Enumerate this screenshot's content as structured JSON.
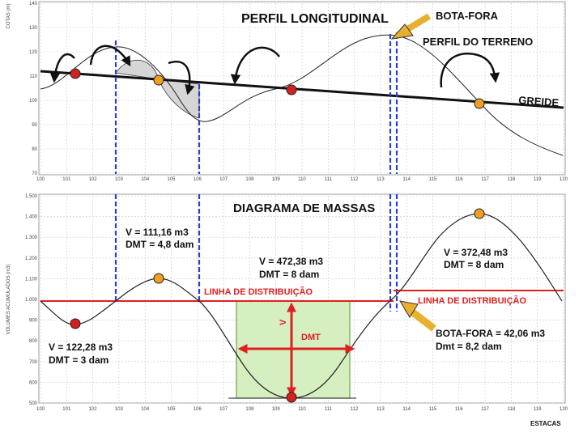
{
  "top_chart": {
    "title": "PERFIL LONGITUDINAL",
    "y_axis_label": "COTAS (m)",
    "y_ticks": [
      "140",
      "130",
      "120",
      "110",
      "100",
      "90",
      "80",
      "70"
    ],
    "x_ticks": [
      "100",
      "101",
      "102",
      "103",
      "104",
      "105",
      "106",
      "107",
      "108",
      "109",
      "110",
      "111",
      "112",
      "113",
      "114",
      "115",
      "116",
      "117",
      "118",
      "119",
      "120"
    ],
    "labels": {
      "bota_fora": "BOTA-FORA",
      "perfil_terreno": "PERFIL DO TERRENO",
      "greide": "GREIDE"
    },
    "colors": {
      "accent_line": "#2b3fcf",
      "fill": "#d9d9d9",
      "red_dot": "#d42020",
      "orange_dot": "#f0a020"
    }
  },
  "bottom_chart": {
    "title": "DIAGRAMA DE MASSAS",
    "y_axis_label": "VOLUMES ACUMULADOS (m3)",
    "x_axis_label": "ESTACAS",
    "y_ticks": [
      "1.500",
      "1.400",
      "1.300",
      "1.200",
      "1.100",
      "1.000",
      "900",
      "800",
      "700",
      "600",
      "500"
    ],
    "x_ticks": [
      "100",
      "101",
      "102",
      "103",
      "104",
      "105",
      "106",
      "107",
      "108",
      "109",
      "110",
      "111",
      "112",
      "113",
      "114",
      "115",
      "116",
      "117",
      "118",
      "119",
      "120"
    ],
    "annotations": {
      "v1_volume": "V = 111,16 m3",
      "v1_dmt": "DMT = 4,8 dam",
      "v2_volume": "V = 472,38 m3",
      "v2_dmt": "DMT = 8 dam",
      "v3_volume": "V = 372,48 m3",
      "v3_dmt": "DMT = 8 dam",
      "v4_volume": "V = 122,28 m3",
      "v4_dmt": "DMT = 3 dam",
      "linha_1": "LINHA DE DISTRIBUIÇÃO",
      "linha_2": "LINHA DE DISTRIBUIÇÃO",
      "v_marker": "V",
      "dmt_marker": "DMT",
      "bota_fora_volume": "BOTA-FORA = 42,06 m3",
      "bota_fora_dmt": "Dmt = 8,2 dam"
    },
    "colors": {
      "distribution_line": "#e02020",
      "green_box": "#d6efc0",
      "green_border": "#6aa84f"
    }
  }
}
